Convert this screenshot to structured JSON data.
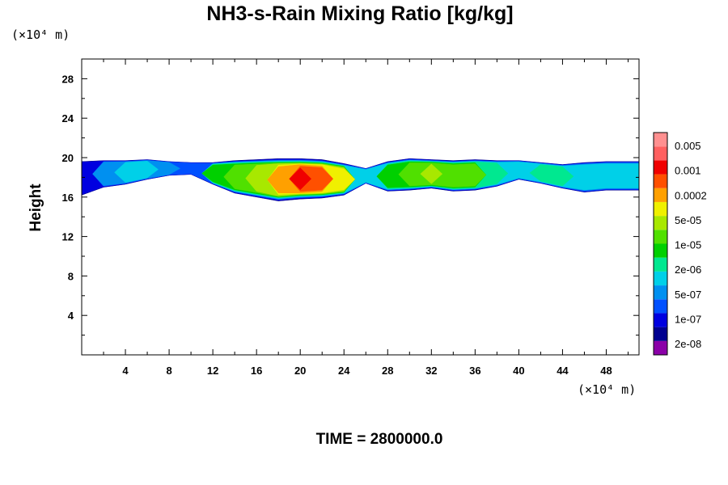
{
  "chart_data": {
    "type": "heatmap",
    "title": "NH3-s-Rain Mixing Ratio [kg/kg]",
    "ylabel": "Height",
    "x_unit": "(×10⁴ m)",
    "y_unit": "(×10⁴ m)",
    "xlim": [
      0,
      51
    ],
    "ylim": [
      0,
      30
    ],
    "x_ticks": [
      4,
      8,
      12,
      16,
      20,
      24,
      28,
      32,
      36,
      40,
      44,
      48
    ],
    "y_ticks": [
      4,
      8,
      12,
      16,
      20,
      24,
      28
    ],
    "colorbar": {
      "labels": [
        "0.005",
        "0.001",
        "0.0002",
        "5e-05",
        "1e-05",
        "2e-06",
        "5e-07",
        "1e-07",
        "2e-08"
      ],
      "colors": [
        "#8b00a8",
        "#000090",
        "#0000e0",
        "#0050ff",
        "#0090f0",
        "#00d0e8",
        "#00e890",
        "#00d000",
        "#50e000",
        "#a8e800",
        "#f0f000",
        "#ffa000",
        "#ff5000",
        "#f00000",
        "#ff6060",
        "#ff9090"
      ]
    },
    "layer": {
      "description": "mixing-ratio band",
      "x": [
        0,
        2,
        4,
        6,
        8,
        10,
        12,
        14,
        16,
        18,
        20,
        22,
        24,
        26,
        28,
        30,
        32,
        34,
        36,
        38,
        40,
        42,
        44,
        46,
        48,
        51
      ],
      "top": [
        19.6,
        19.7,
        19.7,
        19.8,
        19.6,
        19.5,
        19.5,
        19.7,
        19.8,
        19.9,
        19.9,
        19.8,
        19.4,
        18.9,
        19.6,
        19.9,
        19.8,
        19.7,
        19.8,
        19.7,
        19.7,
        19.5,
        19.3,
        19.5,
        19.6,
        19.6
      ],
      "bottom": [
        16.2,
        17.0,
        17.3,
        17.8,
        18.2,
        18.3,
        17.3,
        16.4,
        16.0,
        15.6,
        15.8,
        15.9,
        16.2,
        17.4,
        16.6,
        16.7,
        16.9,
        16.6,
        16.7,
        17.1,
        17.8,
        17.4,
        16.9,
        16.5,
        16.7,
        16.7
      ],
      "intensity": [
        2,
        4,
        5,
        5,
        4,
        3,
        7,
        8,
        9,
        11,
        13,
        12,
        10,
        5,
        7,
        8,
        9,
        8,
        8,
        6,
        5,
        6,
        6,
        5,
        5,
        5
      ]
    }
  },
  "footer": {
    "time_label": "TIME = 2800000.0"
  }
}
